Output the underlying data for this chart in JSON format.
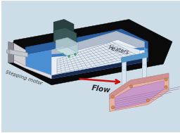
{
  "bg_color": "#ccdde8",
  "labels": {
    "flow": "Flow",
    "stepping_motor": "Stepping motor",
    "heaters": "Heaters"
  },
  "colors": {
    "black_base": "#0a0a0a",
    "blue_body": "#4a8fd4",
    "blue_side": "#2a5fa0",
    "blue_dark_top": "#1a3060",
    "white_frame_top": "#e8eef4",
    "white_frame_side": "#b0bccc",
    "pcr_top": "#d0dce8",
    "pcr_grid": "#9aabbc",
    "left_wall_face": "#c8c8cc",
    "left_wall_top": "#e0e0e4",
    "left_wall_side": "#888898",
    "pillar": "#d8e4f0",
    "pillar_edge": "#a0b4c8",
    "elec_outer": "#e8b0a0",
    "elec_inner": "#c898c8",
    "elec_side": "#d09090",
    "elec_frame": "#f0c0b0",
    "screw": "#cc8855",
    "motor_dark": "#2a4040",
    "motor_mid": "#3a5858",
    "motor_light": "#507070",
    "motor_arm": "#90a8a8",
    "detect_body": "#88aabb",
    "detect_top": "#aaccdd",
    "arrow_color": "#cc1111",
    "text_color": "#333333",
    "black_shadow": "#000000"
  }
}
